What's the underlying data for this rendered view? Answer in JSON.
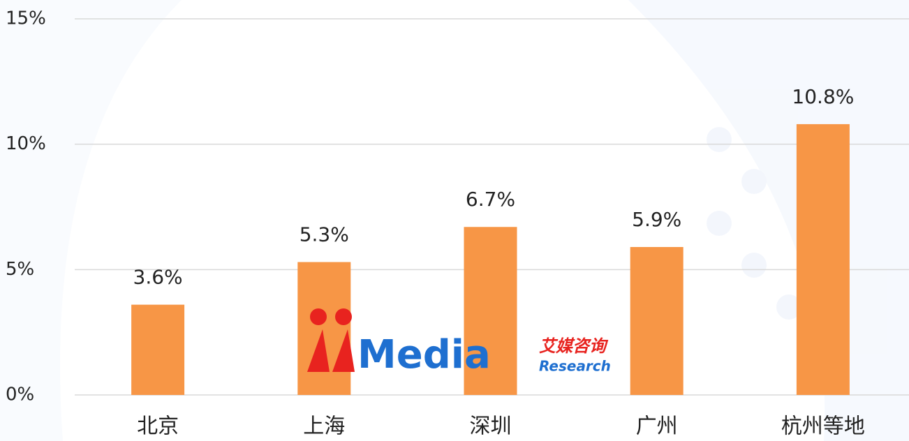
{
  "chart_data": {
    "type": "bar",
    "categories": [
      "北京",
      "上海",
      "深圳",
      "广州",
      "杭州等地"
    ],
    "values": [
      3.6,
      5.3,
      6.7,
      5.9,
      10.8
    ],
    "value_labels": [
      "3.6%",
      "5.3%",
      "6.7%",
      "5.9%",
      "10.8%"
    ],
    "color": "#f79646",
    "ylim": [
      0,
      15
    ],
    "yticks": [
      {
        "value": 0,
        "label": "0%"
      },
      {
        "value": 5,
        "label": "5%"
      },
      {
        "value": 10,
        "label": "10%"
      },
      {
        "value": 15,
        "label": "15%"
      }
    ],
    "grid": true,
    "watermark": {
      "brand": "Media",
      "name": "艾媒咨询",
      "sub": "Research"
    }
  }
}
